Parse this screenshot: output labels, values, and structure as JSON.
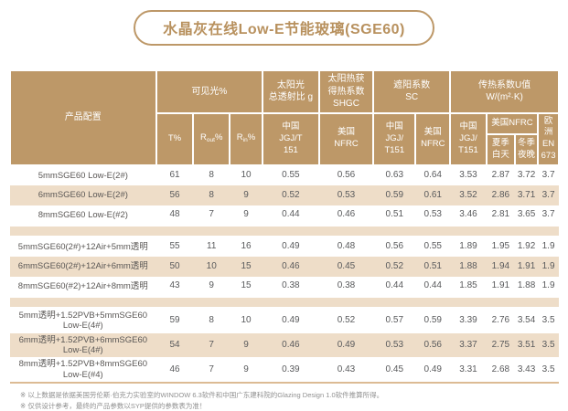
{
  "page": {
    "title": "水晶灰在线Low-E节能玻璃(SGE60)"
  },
  "colors": {
    "header_tan": "#bd9868",
    "stripe_beige": "#eeddc8",
    "title_text": "#b8915e",
    "bottom_rule": "#dcbb94",
    "data_text": "#595a5c",
    "footnote_text": "#909090"
  },
  "table": {
    "header": {
      "product_config": "产品配置",
      "visible_light": "可见光%",
      "t_percent": "T%",
      "r_out": {
        "pre": "R",
        "sub": "out",
        "post": "%"
      },
      "r_in": {
        "pre": "R",
        "sub": "in",
        "post": "%"
      },
      "solar_transmittance": "太阳光\n总透射比 g",
      "solar_cn": "中国\nJGJ/T\n151",
      "shgc": "太阳热获\n得热系数\nSHGC",
      "shgc_us": "美国\nNFRC",
      "sc": "遮阳系数\nSC",
      "sc_cn": "中国\nJGJ/\nT151",
      "sc_us": "美国\nNFRC",
      "u_value": "传热系数U值\nW/(m²·K)",
      "u_cn": "中国\nJGJ/\nT151",
      "u_us": "美国NFRC",
      "u_us_summer": "夏季\n白天",
      "u_us_winter": "冬季\n夜晚",
      "u_eu": "欧洲\nEN\n673"
    },
    "groups": [
      {
        "rows": [
          {
            "label": "5mmSGE60 Low-E(2#)",
            "values": [
              "61",
              "8",
              "10",
              "0.55",
              "0.56",
              "0.63",
              "0.64",
              "3.53",
              "2.87",
              "3.72",
              "3.7"
            ]
          },
          {
            "label": "6mmSGE60 Low-E(2#)",
            "values": [
              "56",
              "8",
              "9",
              "0.52",
              "0.53",
              "0.59",
              "0.61",
              "3.52",
              "2.86",
              "3.71",
              "3.7"
            ]
          },
          {
            "label": "8mmSGE60 Low-E(#2)",
            "values": [
              "48",
              "7",
              "9",
              "0.44",
              "0.46",
              "0.51",
              "0.53",
              "3.46",
              "2.81",
              "3.65",
              "3.7"
            ]
          }
        ]
      },
      {
        "rows": [
          {
            "label": "5mmSGE60(2#)+12Air+5mm透明",
            "values": [
              "55",
              "11",
              "16",
              "0.49",
              "0.48",
              "0.56",
              "0.55",
              "1.89",
              "1.95",
              "1.92",
              "1.9"
            ]
          },
          {
            "label": "6mmSGE60(2#)+12Air+6mm透明",
            "values": [
              "50",
              "10",
              "15",
              "0.46",
              "0.45",
              "0.52",
              "0.51",
              "1.88",
              "1.94",
              "1.91",
              "1.9"
            ]
          },
          {
            "label": "8mmSGE60(#2)+12Air+8mm透明",
            "values": [
              "43",
              "9",
              "15",
              "0.38",
              "0.38",
              "0.44",
              "0.44",
              "1.85",
              "1.91",
              "1.88",
              "1.9"
            ]
          }
        ]
      },
      {
        "rows": [
          {
            "label": "5mm透明+1.52PVB+5mmSGE60\nLow-E(4#)",
            "values": [
              "59",
              "8",
              "10",
              "0.49",
              "0.52",
              "0.57",
              "0.59",
              "3.39",
              "2.76",
              "3.54",
              "3.5"
            ]
          },
          {
            "label": "6mm透明+1.52PVB+6mmSGE60\nLow-E(4#)",
            "values": [
              "54",
              "7",
              "9",
              "0.46",
              "0.49",
              "0.53",
              "0.56",
              "3.37",
              "2.75",
              "3.51",
              "3.5"
            ]
          },
          {
            "label": "8mm透明+1.52PVB+8mmSGE60\nLow-E(#4)",
            "values": [
              "46",
              "7",
              "9",
              "0.39",
              "0.43",
              "0.45",
              "0.49",
              "3.31",
              "2.68",
              "3.43",
              "3.5"
            ]
          }
        ]
      }
    ]
  },
  "footnotes": [
    "※ 以上数据是依据美国劳伦斯·伯克力实验室的WINDOW 6.3软件和中国广东建科院的Glazing Design 1.0软件推算所得。",
    "※ 仅供设计参考，最终的产品参数以SYP提供的参数表为准！"
  ]
}
